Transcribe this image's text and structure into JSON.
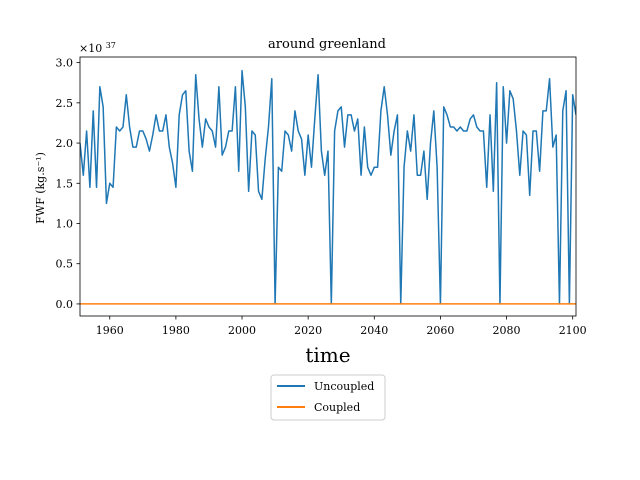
{
  "chart_data": {
    "type": "line",
    "title": "around greenland",
    "xlabel": "time",
    "ylabel": "FWF (kg.s⁻¹)",
    "y_multiplier_label": "×10",
    "y_multiplier_exponent": "37",
    "xlim": [
      1951,
      2101
    ],
    "ylim": [
      -0.15,
      3.07
    ],
    "x_ticks": [
      1960,
      1980,
      2000,
      2020,
      2040,
      2060,
      2080,
      2100
    ],
    "y_ticks": [
      0.0,
      0.5,
      1.0,
      1.5,
      2.0,
      2.5,
      3.0
    ],
    "x_tick_labels": [
      "1960",
      "1980",
      "2000",
      "2020",
      "2040",
      "2060",
      "2080",
      "2100"
    ],
    "y_tick_labels": [
      "0.0",
      "0.5",
      "1.0",
      "1.5",
      "2.0",
      "2.5",
      "3.0"
    ],
    "grid": false,
    "legend_position": "below-center",
    "series": [
      {
        "name": "Uncoupled",
        "color": "#1f77b4",
        "x_start": 1951,
        "x_step": 1,
        "values": [
          2.0,
          1.6,
          2.15,
          1.45,
          2.4,
          1.45,
          2.7,
          2.45,
          1.25,
          1.5,
          1.45,
          2.2,
          2.15,
          2.2,
          2.6,
          2.2,
          1.95,
          1.95,
          2.15,
          2.15,
          2.05,
          1.9,
          2.1,
          2.35,
          2.15,
          2.15,
          2.35,
          1.95,
          1.75,
          1.45,
          2.35,
          2.6,
          2.65,
          1.9,
          1.65,
          2.85,
          2.3,
          1.95,
          2.3,
          2.2,
          2.15,
          1.95,
          2.7,
          1.85,
          1.95,
          2.15,
          2.15,
          2.7,
          1.65,
          2.9,
          2.45,
          1.4,
          2.15,
          2.1,
          1.4,
          1.3,
          1.8,
          2.2,
          2.8,
          0.0,
          1.7,
          1.65,
          2.15,
          2.1,
          1.9,
          2.4,
          2.15,
          2.05,
          1.6,
          2.1,
          1.7,
          2.3,
          2.85,
          1.9,
          1.6,
          1.9,
          0.0,
          2.15,
          2.4,
          2.45,
          1.95,
          2.35,
          2.35,
          2.15,
          2.3,
          1.6,
          2.2,
          1.7,
          1.6,
          1.7,
          1.7,
          2.4,
          2.7,
          2.35,
          1.85,
          2.15,
          2.35,
          0.0,
          1.7,
          2.15,
          1.9,
          2.35,
          1.6,
          1.6,
          1.9,
          1.3,
          2.0,
          2.4,
          1.7,
          0.0,
          2.45,
          2.35,
          2.2,
          2.2,
          2.15,
          2.2,
          2.15,
          2.15,
          2.3,
          2.35,
          2.2,
          2.15,
          2.15,
          1.45,
          2.35,
          1.4,
          2.75,
          0.0,
          2.7,
          2.0,
          2.65,
          2.55,
          2.15,
          1.6,
          2.15,
          2.1,
          1.35,
          2.15,
          2.15,
          1.65,
          2.4,
          2.4,
          2.8,
          1.95,
          2.1,
          0.0,
          2.4,
          2.65,
          0.0,
          2.6,
          2.35
        ]
      },
      {
        "name": "Coupled",
        "color": "#ff7f0e",
        "x": [
          1951,
          2101
        ],
        "values": [
          0.0,
          0.0
        ]
      }
    ]
  }
}
